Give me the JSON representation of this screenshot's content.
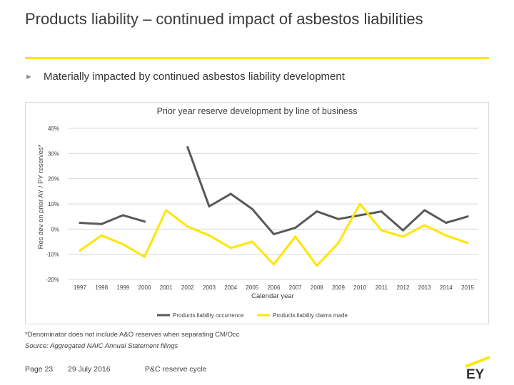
{
  "slide": {
    "title": "Products liability – continued impact of asbestos liabilities",
    "bullet": "Materially impacted by continued asbestos liability development",
    "footnote": "*Denominator does not include A&O reserves when separating CM/Occ",
    "source": "Source: Aggregated NAIC Annual Statement filings",
    "page": "Page 23",
    "date": "29 July 2016",
    "section": "P&C reserve cycle",
    "logo": "EY"
  },
  "colors": {
    "accent": "#ffe600",
    "occurrence": "#595959",
    "claims_made": "#ffe600"
  },
  "chart_data": {
    "type": "line",
    "title": "Prior year reserve development by line of business",
    "xlabel": "Calendar year",
    "ylabel": "Res dev on prior AY / PY reserves*",
    "ylim": [
      -20,
      40
    ],
    "yticks": [
      40,
      30,
      20,
      10,
      0,
      -10,
      -20
    ],
    "ytick_labels": [
      "40%",
      "30%",
      "20%",
      "10%",
      "0%",
      "-10%",
      "-20%"
    ],
    "grid": "horizontal",
    "legend": "bottom",
    "x": [
      "1997",
      "1998",
      "1999",
      "2000",
      "2001",
      "2002",
      "2003",
      "2004",
      "2005",
      "2006",
      "2007",
      "2008",
      "2009",
      "2010",
      "2011",
      "2012",
      "2013",
      "2014",
      "2015"
    ],
    "series": [
      {
        "name": "Products liability occurrence",
        "color": "#595959",
        "values": [
          2.5,
          2.0,
          5.5,
          3.0,
          null,
          32.5,
          9.0,
          14.0,
          8.0,
          -2.0,
          0.5,
          7.0,
          4.0,
          5.5,
          7.0,
          -0.5,
          7.5,
          2.5,
          5.0
        ]
      },
      {
        "name": "Products liability claims made",
        "color": "#ffe600",
        "values": [
          -8.5,
          -2.5,
          -6.0,
          -11.0,
          7.5,
          1.0,
          -2.5,
          -7.5,
          -5.0,
          -14.0,
          -3.0,
          -14.5,
          -5.5,
          10.0,
          -0.5,
          -3.0,
          1.5,
          -2.5,
          -5.5
        ]
      }
    ]
  }
}
